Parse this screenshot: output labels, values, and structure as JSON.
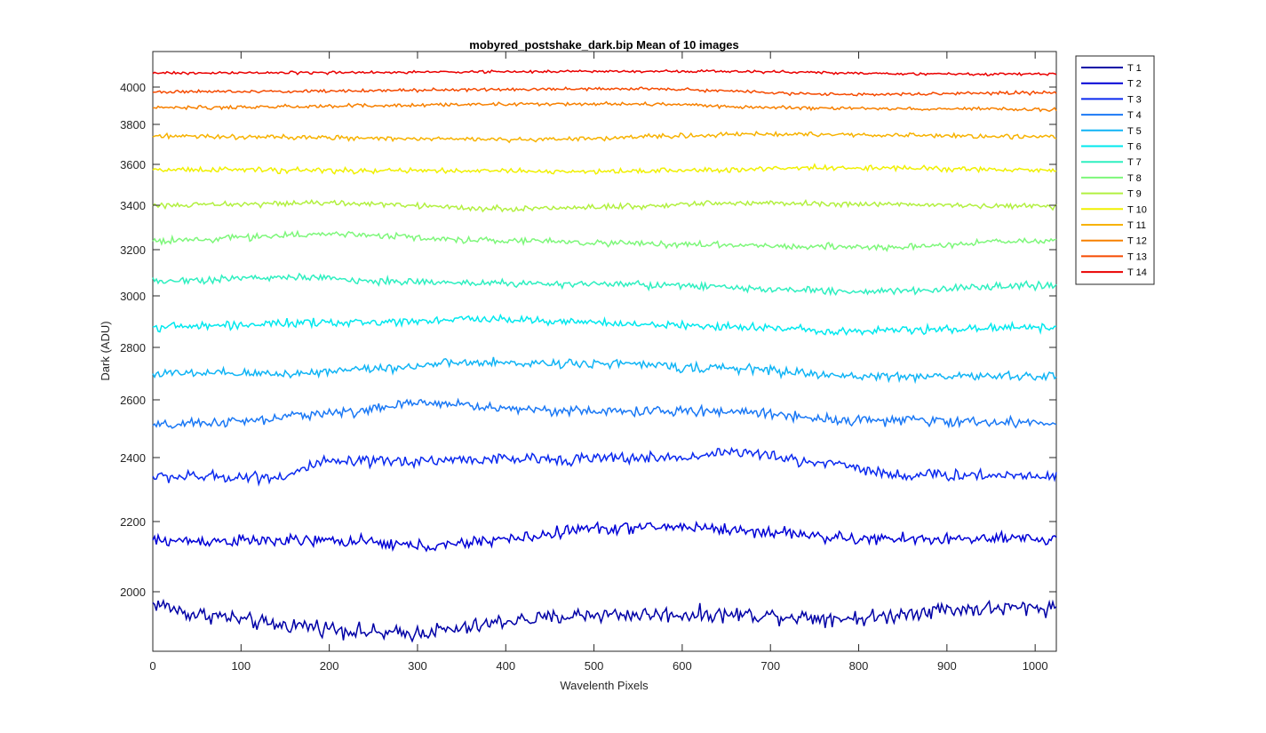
{
  "chart_data": {
    "type": "line",
    "title": "mobyred_postshake_dark.bip  Mean of 10 images",
    "xlabel": "Wavelenth Pixels",
    "ylabel": "Dark (ADU)",
    "xlim": [
      0,
      1024
    ],
    "ylim_scale": "nonlinear",
    "x_ticks": [
      0,
      100,
      200,
      300,
      400,
      500,
      600,
      700,
      800,
      900,
      1000
    ],
    "x_tick_labels": [
      "0",
      "100",
      "200",
      "300",
      "400",
      "500",
      "600",
      "700",
      "800",
      "900",
      "1000"
    ],
    "y_ticks": [
      2000,
      2200,
      2400,
      2600,
      2800,
      3000,
      3200,
      3400,
      3600,
      3800,
      4000
    ],
    "y_tick_labels": [
      "2000",
      "2200",
      "2400",
      "2600",
      "2800",
      "3000",
      "3200",
      "3400",
      "3600",
      "3800",
      "4000"
    ],
    "legend_position": "outside-top-right",
    "series": [
      {
        "name": "T 1",
        "color": "#0000a6",
        "baseline": 1935,
        "noise": 16,
        "profile": [
          [
            0,
            1965
          ],
          [
            50,
            1935
          ],
          [
            150,
            1905
          ],
          [
            280,
            1880
          ],
          [
            330,
            1890
          ],
          [
            420,
            1920
          ],
          [
            500,
            1935
          ],
          [
            650,
            1935
          ],
          [
            800,
            1925
          ],
          [
            900,
            1950
          ],
          [
            1024,
            1955
          ]
        ]
      },
      {
        "name": "T 2",
        "color": "#0000d6",
        "baseline": 2150,
        "noise": 12,
        "profile": [
          [
            0,
            2145
          ],
          [
            200,
            2145
          ],
          [
            320,
            2130
          ],
          [
            400,
            2150
          ],
          [
            500,
            2180
          ],
          [
            600,
            2185
          ],
          [
            700,
            2170
          ],
          [
            800,
            2150
          ],
          [
            1024,
            2150
          ]
        ]
      },
      {
        "name": "T 3",
        "color": "#0a29ef",
        "baseline": 2370,
        "noise": 13,
        "profile": [
          [
            0,
            2340
          ],
          [
            140,
            2340
          ],
          [
            200,
            2385
          ],
          [
            400,
            2395
          ],
          [
            600,
            2400
          ],
          [
            650,
            2420
          ],
          [
            760,
            2385
          ],
          [
            850,
            2345
          ],
          [
            1024,
            2345
          ]
        ]
      },
      {
        "name": "T 4",
        "color": "#1a78f5",
        "baseline": 2540,
        "noise": 12,
        "profile": [
          [
            0,
            2510
          ],
          [
            100,
            2525
          ],
          [
            200,
            2555
          ],
          [
            320,
            2590
          ],
          [
            400,
            2570
          ],
          [
            500,
            2560
          ],
          [
            650,
            2560
          ],
          [
            800,
            2530
          ],
          [
            1024,
            2520
          ]
        ]
      },
      {
        "name": "T 5",
        "color": "#10b4f5",
        "baseline": 2710,
        "noise": 12,
        "profile": [
          [
            0,
            2700
          ],
          [
            150,
            2700
          ],
          [
            250,
            2720
          ],
          [
            350,
            2740
          ],
          [
            500,
            2740
          ],
          [
            650,
            2720
          ],
          [
            800,
            2690
          ],
          [
            1024,
            2690
          ]
        ]
      },
      {
        "name": "T 6",
        "color": "#00e8ee",
        "baseline": 2890,
        "noise": 11,
        "profile": [
          [
            0,
            2880
          ],
          [
            200,
            2895
          ],
          [
            380,
            2910
          ],
          [
            600,
            2885
          ],
          [
            800,
            2865
          ],
          [
            1024,
            2880
          ]
        ]
      },
      {
        "name": "T 7",
        "color": "#2eefc0",
        "baseline": 3060,
        "noise": 11,
        "profile": [
          [
            0,
            3065
          ],
          [
            150,
            3080
          ],
          [
            300,
            3060
          ],
          [
            500,
            3050
          ],
          [
            800,
            3020
          ],
          [
            1024,
            3045
          ]
        ]
      },
      {
        "name": "T 8",
        "color": "#7df77a",
        "baseline": 3240,
        "noise": 10,
        "profile": [
          [
            0,
            3240
          ],
          [
            200,
            3270
          ],
          [
            400,
            3240
          ],
          [
            600,
            3225
          ],
          [
            800,
            3210
          ],
          [
            1024,
            3240
          ]
        ]
      },
      {
        "name": "T 9",
        "color": "#b2f040",
        "baseline": 3400,
        "noise": 9,
        "profile": [
          [
            0,
            3400
          ],
          [
            200,
            3410
          ],
          [
            400,
            3385
          ],
          [
            700,
            3410
          ],
          [
            1024,
            3395
          ]
        ]
      },
      {
        "name": "T 10",
        "color": "#f0f000",
        "baseline": 3570,
        "noise": 9,
        "profile": [
          [
            0,
            3575
          ],
          [
            200,
            3570
          ],
          [
            500,
            3565
          ],
          [
            800,
            3585
          ],
          [
            1024,
            3570
          ]
        ]
      },
      {
        "name": "T 11",
        "color": "#f7b200",
        "baseline": 3740,
        "noise": 8,
        "profile": [
          [
            0,
            3740
          ],
          [
            400,
            3725
          ],
          [
            700,
            3750
          ],
          [
            1024,
            3740
          ]
        ]
      },
      {
        "name": "T 12",
        "color": "#f78000",
        "baseline": 3890,
        "noise": 7,
        "profile": [
          [
            0,
            3890
          ],
          [
            500,
            3910
          ],
          [
            800,
            3885
          ],
          [
            1024,
            3880
          ]
        ]
      },
      {
        "name": "T 13",
        "color": "#f54a00",
        "baseline": 3970,
        "noise": 6,
        "profile": [
          [
            0,
            3975
          ],
          [
            550,
            3990
          ],
          [
            800,
            3960
          ],
          [
            1024,
            3970
          ]
        ]
      },
      {
        "name": "T 14",
        "color": "#ea0000",
        "baseline": 4070,
        "noise": 5,
        "profile": [
          [
            0,
            4075
          ],
          [
            600,
            4085
          ],
          [
            900,
            4070
          ],
          [
            1024,
            4070
          ]
        ]
      }
    ]
  }
}
